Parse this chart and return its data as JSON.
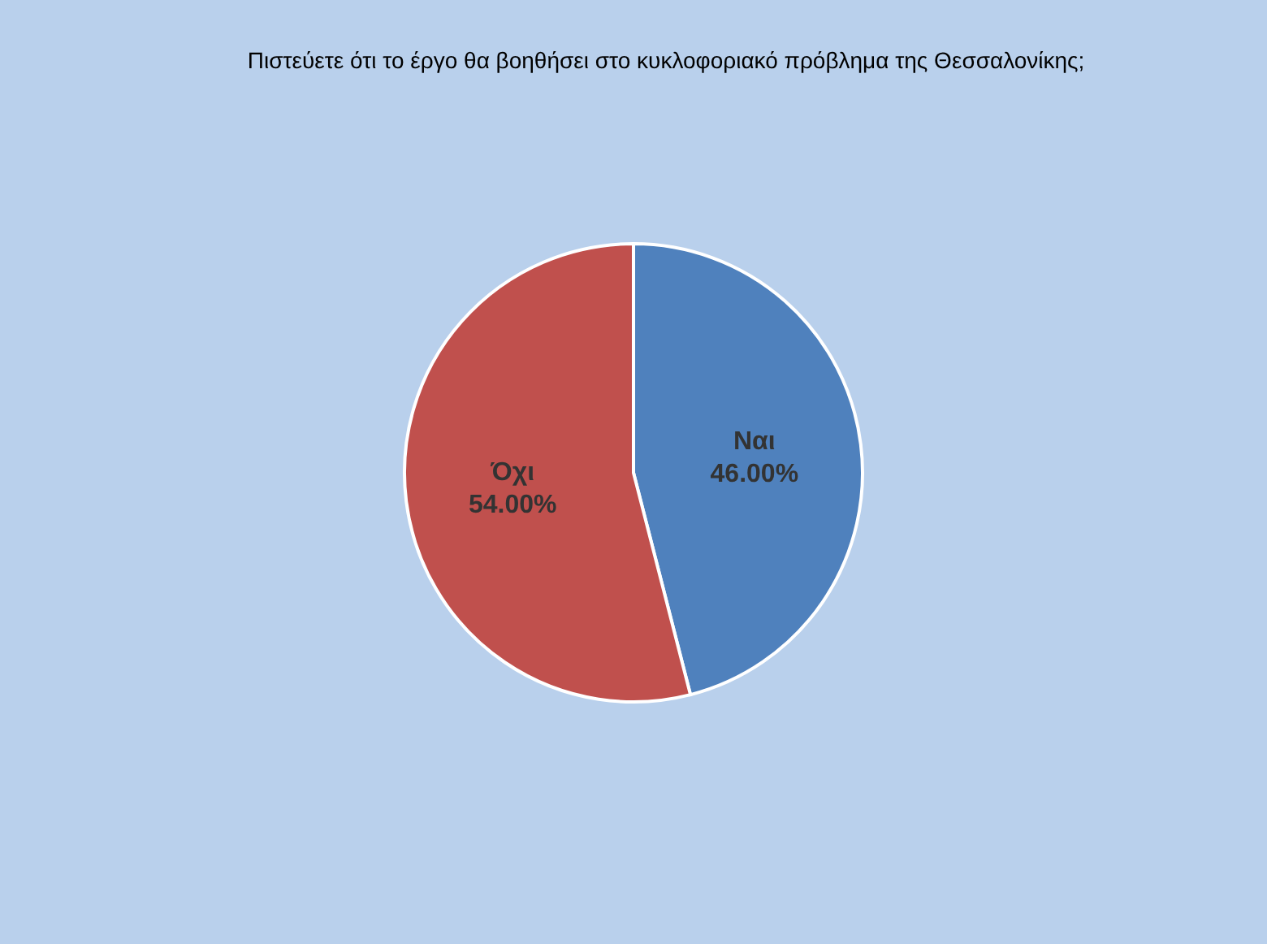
{
  "chart_data": {
    "type": "pie",
    "title": "Πιστεύετε ότι το έργο θα βοηθήσει στο κυκλοφοριακό πρόβλημα της Θεσσαλονίκης;",
    "categories": [
      "Ναι",
      "Όχι"
    ],
    "values": [
      46,
      54
    ],
    "colors": [
      "#4f81bd",
      "#c0504d"
    ],
    "value_labels": [
      "46.00%",
      "54.00%"
    ]
  }
}
